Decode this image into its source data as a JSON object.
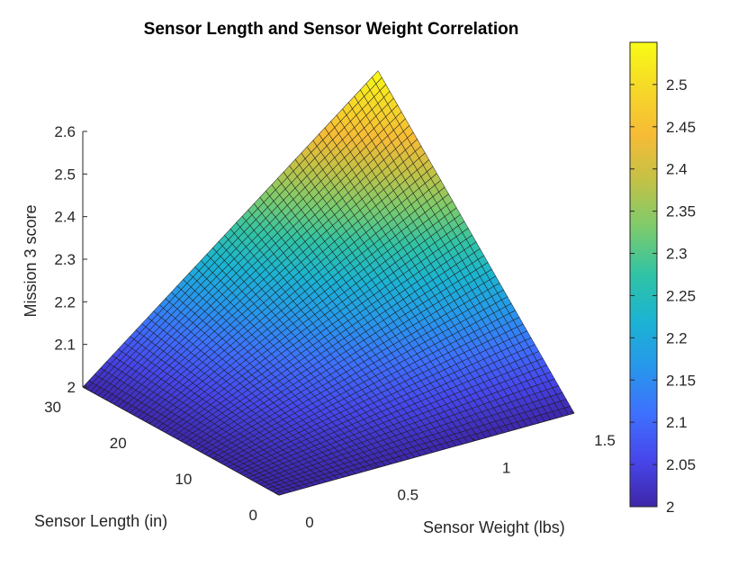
{
  "chart_data": {
    "type": "surface",
    "title": "Sensor Length and Sensor Weight Correlation",
    "xlabel": "Sensor Weight (lbs)",
    "ylabel": "Sensor Length (in)",
    "zlabel": "Mission 3 score",
    "xlim": [
      0,
      1.5
    ],
    "ylim": [
      0,
      30
    ],
    "zlim": [
      2,
      2.6
    ],
    "x_ticks": [
      "0",
      "0.5",
      "1",
      "1.5"
    ],
    "y_ticks": [
      "0",
      "10",
      "20",
      "30"
    ],
    "z_ticks": [
      "2",
      "2.1",
      "2.2",
      "2.3",
      "2.4",
      "2.5",
      "2.6"
    ],
    "grid_points": 51,
    "surface_corners": [
      {
        "x": 0,
        "y": 0,
        "z": 2.0
      },
      {
        "x": 1.5,
        "y": 0,
        "z": 2.0
      },
      {
        "x": 0,
        "y": 30,
        "z": 2.0
      },
      {
        "x": 1.5,
        "y": 30,
        "z": 2.55
      }
    ],
    "colormap": "parula",
    "colorbar": {
      "range": [
        2.0,
        2.55
      ],
      "ticks": [
        "2",
        "2.05",
        "2.1",
        "2.15",
        "2.2",
        "2.25",
        "2.3",
        "2.35",
        "2.4",
        "2.45",
        "2.5"
      ],
      "stops": [
        "#3e26a8",
        "#4746eb",
        "#3e70fe",
        "#2797eb",
        "#1bb3d3",
        "#30c3a5",
        "#7bcb6d",
        "#c1c247",
        "#f7bb36",
        "#f5d828",
        "#f9fb15"
      ]
    },
    "grid": false,
    "legend": "none"
  }
}
